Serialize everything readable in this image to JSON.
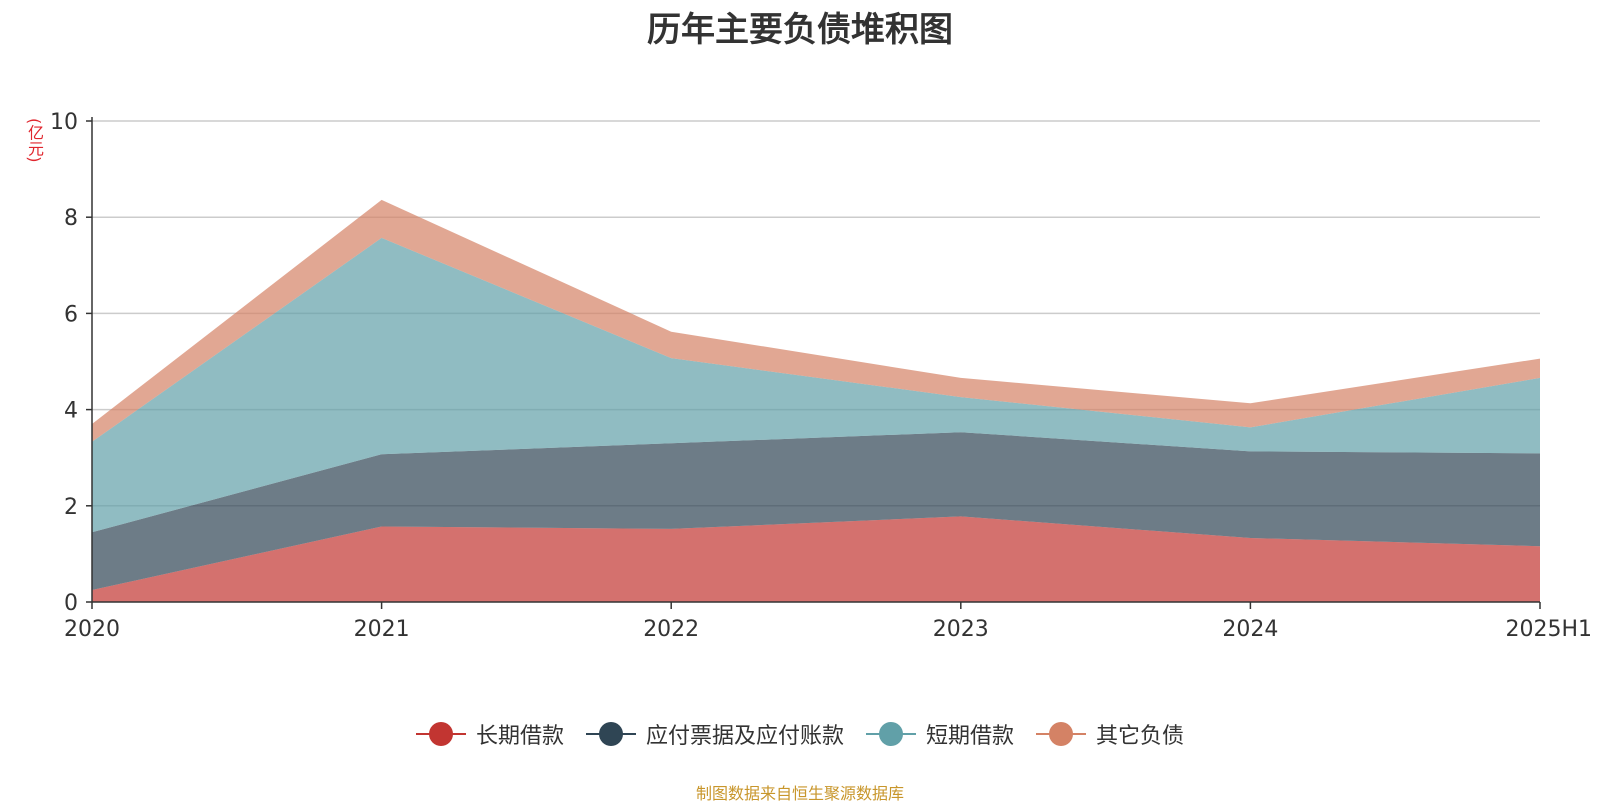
{
  "chart_data": {
    "type": "area",
    "stacked": true,
    "title": "历年主要负债堆积图",
    "ylabel": "(亿元)",
    "xlabel": "",
    "categories": [
      "2020",
      "2021",
      "2022",
      "2023",
      "2024",
      "2025H1"
    ],
    "ylim": [
      0,
      10
    ],
    "yticks": [
      0,
      2,
      4,
      6,
      8,
      10
    ],
    "grid": true,
    "legend_position": "bottom",
    "series": [
      {
        "name": "长期借款",
        "color": "#c23531",
        "values": [
          0.25,
          1.57,
          1.52,
          1.78,
          1.33,
          1.16
        ]
      },
      {
        "name": "应付票据及应付账款",
        "color": "#2f4554",
        "values": [
          1.2,
          1.5,
          1.78,
          1.75,
          1.8,
          1.93
        ]
      },
      {
        "name": "短期借款",
        "color": "#61a0a8",
        "values": [
          1.88,
          4.5,
          1.77,
          0.73,
          0.5,
          1.57
        ]
      },
      {
        "name": "其它负债",
        "color": "#d48265",
        "values": [
          0.37,
          0.79,
          0.55,
          0.4,
          0.5,
          0.4
        ]
      }
    ],
    "source": "制图数据来自恒生聚源数据库"
  }
}
